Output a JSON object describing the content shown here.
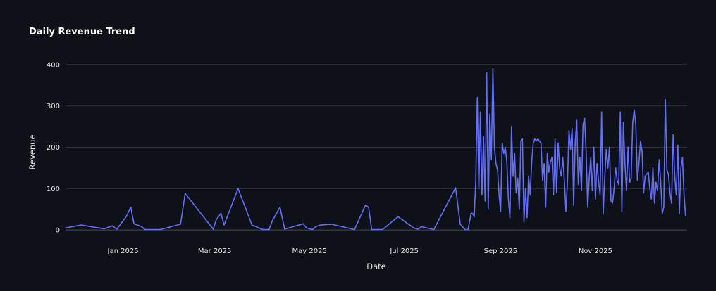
{
  "chart_data": {
    "type": "line",
    "title": "Daily Revenue Trend",
    "xlabel": "Date",
    "ylabel": "Revenue",
    "xlim": [
      "2024-11-25",
      "2025-12-30"
    ],
    "ylim": [
      -10,
      420
    ],
    "xticks": [
      {
        "date": "2025-01-01",
        "label": "Jan 2025"
      },
      {
        "date": "2025-03-01",
        "label": "Mar 2025"
      },
      {
        "date": "2025-05-01",
        "label": "May 2025"
      },
      {
        "date": "2025-07-01",
        "label": "Jul 2025"
      },
      {
        "date": "2025-09-01",
        "label": "Sep 2025"
      },
      {
        "date": "2025-11-01",
        "label": "Nov 2025"
      }
    ],
    "yticks": [
      0,
      100,
      200,
      300,
      400
    ],
    "grid": true,
    "colors": {
      "line": "#636efa",
      "grid": "#31333f",
      "background": "#0e1117"
    },
    "series": [
      {
        "name": "Revenue",
        "x": [
          "2024-11-25",
          "2024-12-05",
          "2024-12-20",
          "2024-12-25",
          "2024-12-28",
          "2025-01-03",
          "2025-01-06",
          "2025-01-08",
          "2025-01-13",
          "2025-01-15",
          "2025-01-25",
          "2025-02-07",
          "2025-02-10",
          "2025-02-28",
          "2025-03-02",
          "2025-03-05",
          "2025-03-07",
          "2025-03-16",
          "2025-03-25",
          "2025-04-01",
          "2025-04-05",
          "2025-04-07",
          "2025-04-12",
          "2025-04-15",
          "2025-04-27",
          "2025-04-29",
          "2025-05-03",
          "2025-05-05",
          "2025-05-08",
          "2025-05-15",
          "2025-05-30",
          "2025-06-06",
          "2025-06-08",
          "2025-06-10",
          "2025-06-17",
          "2025-06-27",
          "2025-07-07",
          "2025-07-10",
          "2025-07-12",
          "2025-07-20",
          "2025-08-03",
          "2025-08-06",
          "2025-08-09",
          "2025-08-11",
          "2025-08-13",
          "2025-08-14",
          "2025-08-15",
          "2025-08-16",
          "2025-08-17",
          "2025-08-18",
          "2025-08-19",
          "2025-08-20",
          "2025-08-21",
          "2025-08-22",
          "2025-08-23",
          "2025-08-24",
          "2025-08-25",
          "2025-08-26",
          "2025-08-27",
          "2025-08-28",
          "2025-08-29",
          "2025-08-30",
          "2025-08-31",
          "2025-09-01",
          "2025-09-02",
          "2025-09-03",
          "2025-09-04",
          "2025-09-05",
          "2025-09-06",
          "2025-09-07",
          "2025-09-08",
          "2025-09-09",
          "2025-09-10",
          "2025-09-11",
          "2025-09-12",
          "2025-09-13",
          "2025-09-14",
          "2025-09-15",
          "2025-09-16",
          "2025-09-17",
          "2025-09-18",
          "2025-09-19",
          "2025-09-20",
          "2025-09-21",
          "2025-09-22",
          "2025-09-23",
          "2025-09-24",
          "2025-09-25",
          "2025-09-26",
          "2025-09-27",
          "2025-09-28",
          "2025-09-29",
          "2025-09-30",
          "2025-10-01",
          "2025-10-02",
          "2025-10-03",
          "2025-10-04",
          "2025-10-05",
          "2025-10-06",
          "2025-10-07",
          "2025-10-08",
          "2025-10-09",
          "2025-10-10",
          "2025-10-11",
          "2025-10-12",
          "2025-10-13",
          "2025-10-14",
          "2025-10-15",
          "2025-10-16",
          "2025-10-17",
          "2025-10-18",
          "2025-10-19",
          "2025-10-20",
          "2025-10-21",
          "2025-10-22",
          "2025-10-23",
          "2025-10-24",
          "2025-10-25",
          "2025-10-26",
          "2025-10-27",
          "2025-10-28",
          "2025-10-29",
          "2025-10-30",
          "2025-10-31",
          "2025-11-01",
          "2025-11-02",
          "2025-11-03",
          "2025-11-04",
          "2025-11-05",
          "2025-11-06",
          "2025-11-07",
          "2025-11-08",
          "2025-11-09",
          "2025-11-10",
          "2025-11-11",
          "2025-11-12",
          "2025-11-13",
          "2025-11-14",
          "2025-11-15",
          "2025-11-16",
          "2025-11-17",
          "2025-11-18",
          "2025-11-19",
          "2025-11-20",
          "2025-11-21",
          "2025-11-22",
          "2025-11-23",
          "2025-11-24",
          "2025-11-25",
          "2025-11-26",
          "2025-11-27",
          "2025-11-28",
          "2025-11-29",
          "2025-11-30",
          "2025-12-01",
          "2025-12-02",
          "2025-12-03",
          "2025-12-04",
          "2025-12-05",
          "2025-12-06",
          "2025-12-07",
          "2025-12-08",
          "2025-12-09",
          "2025-12-10",
          "2025-12-11",
          "2025-12-12",
          "2025-12-13",
          "2025-12-14",
          "2025-12-15",
          "2025-12-16",
          "2025-12-17",
          "2025-12-18",
          "2025-12-19",
          "2025-12-20",
          "2025-12-21",
          "2025-12-22",
          "2025-12-23",
          "2025-12-24",
          "2025-12-25",
          "2025-12-26",
          "2025-12-27",
          "2025-12-28",
          "2025-12-29"
        ],
        "values": [
          5,
          12,
          3,
          10,
          2,
          32,
          55,
          15,
          8,
          1,
          1,
          14,
          88,
          2,
          25,
          40,
          12,
          100,
          12,
          1,
          1,
          22,
          55,
          2,
          15,
          5,
          1,
          8,
          12,
          14,
          1,
          60,
          55,
          1,
          1,
          32,
          5,
          2,
          8,
          1,
          102,
          14,
          1,
          1,
          40,
          40,
          32,
          120,
          320,
          100,
          285,
          85,
          225,
          70,
          380,
          50,
          280,
          170,
          390,
          200,
          160,
          145,
          85,
          45,
          210,
          185,
          200,
          165,
          75,
          30,
          250,
          130,
          185,
          90,
          125,
          50,
          215,
          220,
          20,
          100,
          30,
          130,
          85,
          165,
          210,
          220,
          215,
          220,
          215,
          210,
          120,
          160,
          55,
          185,
          140,
          165,
          175,
          85,
          220,
          90,
          210,
          150,
          130,
          175,
          120,
          45,
          115,
          240,
          195,
          245,
          60,
          210,
          265,
          110,
          175,
          95,
          255,
          270,
          190,
          55,
          125,
          175,
          95,
          200,
          75,
          160,
          120,
          85,
          285,
          40,
          125,
          195,
          150,
          200,
          70,
          65,
          100,
          150,
          120,
          110,
          285,
          45,
          260,
          160,
          95,
          200,
          115,
          125,
          260,
          290,
          255,
          120,
          160,
          215,
          190,
          90,
          130,
          135,
          140,
          100,
          75,
          150,
          65,
          115,
          95,
          170,
          115,
          40,
          55,
          315,
          145,
          135,
          90,
          65,
          230,
          130,
          85,
          205,
          40,
          150,
          175,
          85,
          35
        ]
      }
    ]
  }
}
